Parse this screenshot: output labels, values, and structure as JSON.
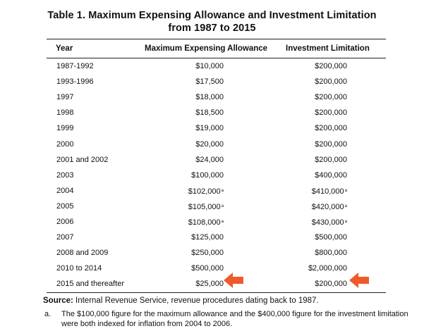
{
  "table": {
    "title_line1": "Table 1. Maximum Expensing Allowance and Investment Limitation",
    "title_line2": "from 1987 to 2015",
    "headers": [
      "Year",
      "Maximum Expensing Allowance",
      "Investment Limitation"
    ],
    "rows": [
      {
        "year": "1987-1992",
        "allowance": "$10,000",
        "allowance_fn": "",
        "limitation": "$200,000",
        "limitation_fn": ""
      },
      {
        "year": "1993-1996",
        "allowance": "$17,500",
        "allowance_fn": "",
        "limitation": "$200,000",
        "limitation_fn": ""
      },
      {
        "year": "1997",
        "allowance": "$18,000",
        "allowance_fn": "",
        "limitation": "$200,000",
        "limitation_fn": ""
      },
      {
        "year": "1998",
        "allowance": "$18,500",
        "allowance_fn": "",
        "limitation": "$200,000",
        "limitation_fn": ""
      },
      {
        "year": "1999",
        "allowance": "$19,000",
        "allowance_fn": "",
        "limitation": "$200,000",
        "limitation_fn": ""
      },
      {
        "year": "2000",
        "allowance": "$20,000",
        "allowance_fn": "",
        "limitation": "$200,000",
        "limitation_fn": ""
      },
      {
        "year": "2001 and 2002",
        "allowance": "$24,000",
        "allowance_fn": "",
        "limitation": "$200,000",
        "limitation_fn": ""
      },
      {
        "year": "2003",
        "allowance": "$100,000",
        "allowance_fn": "",
        "limitation": "$400,000",
        "limitation_fn": ""
      },
      {
        "year": "2004",
        "allowance": "$102,000",
        "allowance_fn": "a",
        "limitation": "$410,000",
        "limitation_fn": "a"
      },
      {
        "year": "2005",
        "allowance": "$105,000",
        "allowance_fn": "a",
        "limitation": "$420,000",
        "limitation_fn": "a"
      },
      {
        "year": "2006",
        "allowance": "$108,000",
        "allowance_fn": "a",
        "limitation": "$430,000",
        "limitation_fn": "a"
      },
      {
        "year": "2007",
        "allowance": "$125,000",
        "allowance_fn": "",
        "limitation": "$500,000",
        "limitation_fn": ""
      },
      {
        "year": "2008 and 2009",
        "allowance": "$250,000",
        "allowance_fn": "",
        "limitation": "$800,000",
        "limitation_fn": ""
      },
      {
        "year": "2010 to 2014",
        "allowance": "$500,000",
        "allowance_fn": "",
        "limitation": "$2,000,000",
        "limitation_fn": ""
      },
      {
        "year": "2015 and thereafter",
        "allowance": "$25,000",
        "allowance_fn": "",
        "limitation": "$200,000",
        "limitation_fn": ""
      }
    ],
    "highlighted_row_index": 14
  },
  "source": {
    "label": "Source:",
    "text": " Internal Revenue Service, revenue procedures dating back to 1987."
  },
  "footnote": {
    "mark": "a.",
    "text": "The $100,000 figure for the maximum allowance and the $400,000 figure for the investment limitation were both indexed for inflation from 2004 to 2006."
  },
  "annotation": {
    "arrow_color": "#f05a2a",
    "arrow_icon": "left-pointing-arrow"
  }
}
